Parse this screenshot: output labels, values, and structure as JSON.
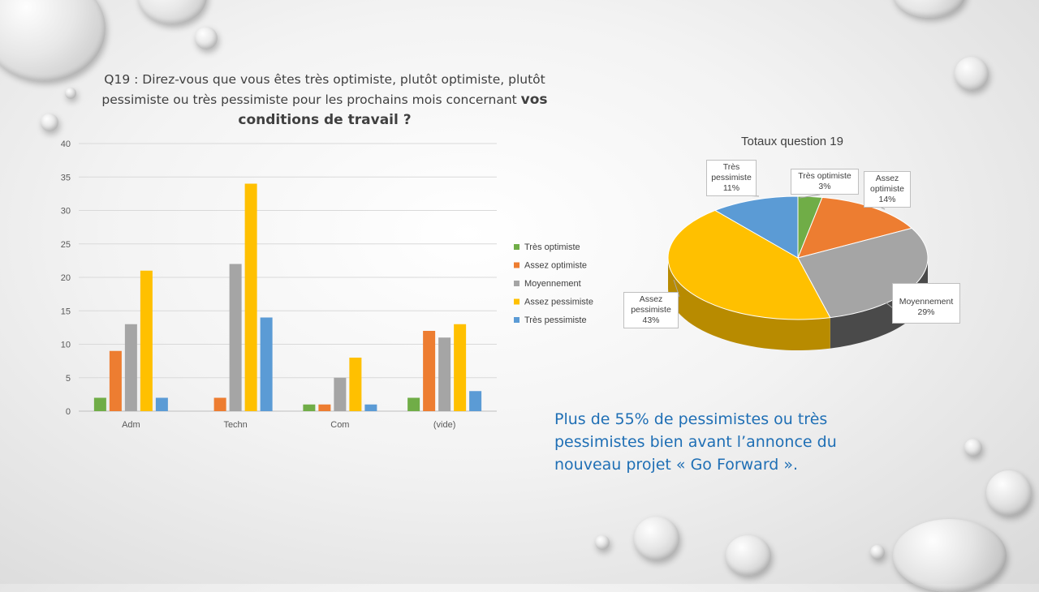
{
  "slide": {
    "question_line1": "Q19 : Direz-vous que vous êtes très optimiste, plutôt optimiste, plutôt",
    "question_line2_normal": "pessimiste ou très pessimiste pour les prochains mois concernant ",
    "question_line2_bold": "vos",
    "question_line3_bold": "conditions de travail ?",
    "note_line1": "Plus de 55% de pessimistes ou très",
    "note_line2": "pessimistes bien avant l’annonce du",
    "note_line3": "nouveau projet « Go Forward »."
  },
  "colors": {
    "tres_optimiste": "#70ad47",
    "assez_optimiste": "#ed7d31",
    "moyennement": "#a5a5a5",
    "assez_pessimiste": "#ffc000",
    "tres_pessimiste": "#5b9bd5"
  },
  "chart_data": [
    {
      "type": "bar",
      "categories": [
        "Adm",
        "Techn",
        "Com",
        "(vide)"
      ],
      "series": [
        {
          "name": "Très optimiste",
          "values": [
            2,
            0,
            1,
            2
          ]
        },
        {
          "name": "Assez optimiste",
          "values": [
            9,
            2,
            1,
            12
          ]
        },
        {
          "name": "Moyennement",
          "values": [
            13,
            22,
            5,
            11
          ]
        },
        {
          "name": "Assez pessimiste",
          "values": [
            21,
            34,
            8,
            13
          ]
        },
        {
          "name": "Très pessimiste",
          "values": [
            2,
            14,
            1,
            3
          ]
        }
      ],
      "yticks": [
        "0",
        "5",
        "10",
        "15",
        "20",
        "25",
        "30",
        "35",
        "40"
      ],
      "ylim": [
        0,
        40
      ],
      "grid": true,
      "legend": "right"
    },
    {
      "type": "pie",
      "title": "Totaux question 19",
      "slices": [
        {
          "name": "Très optimiste",
          "label": "Très optimiste",
          "pct_label": "3%",
          "value": 3
        },
        {
          "name": "Assez optimiste",
          "label": "Assez optimiste",
          "pct_label": "14%",
          "value": 14
        },
        {
          "name": "Moyennement",
          "label": "Moyennement",
          "pct_label": "29%",
          "value": 29
        },
        {
          "name": "Assez pessimiste",
          "label": "Assez pessimiste",
          "pct_label": "43%",
          "value": 43
        },
        {
          "name": "Très pessimiste",
          "label": "Très pessimiste",
          "pct_label": "11%",
          "value": 11
        }
      ]
    }
  ]
}
